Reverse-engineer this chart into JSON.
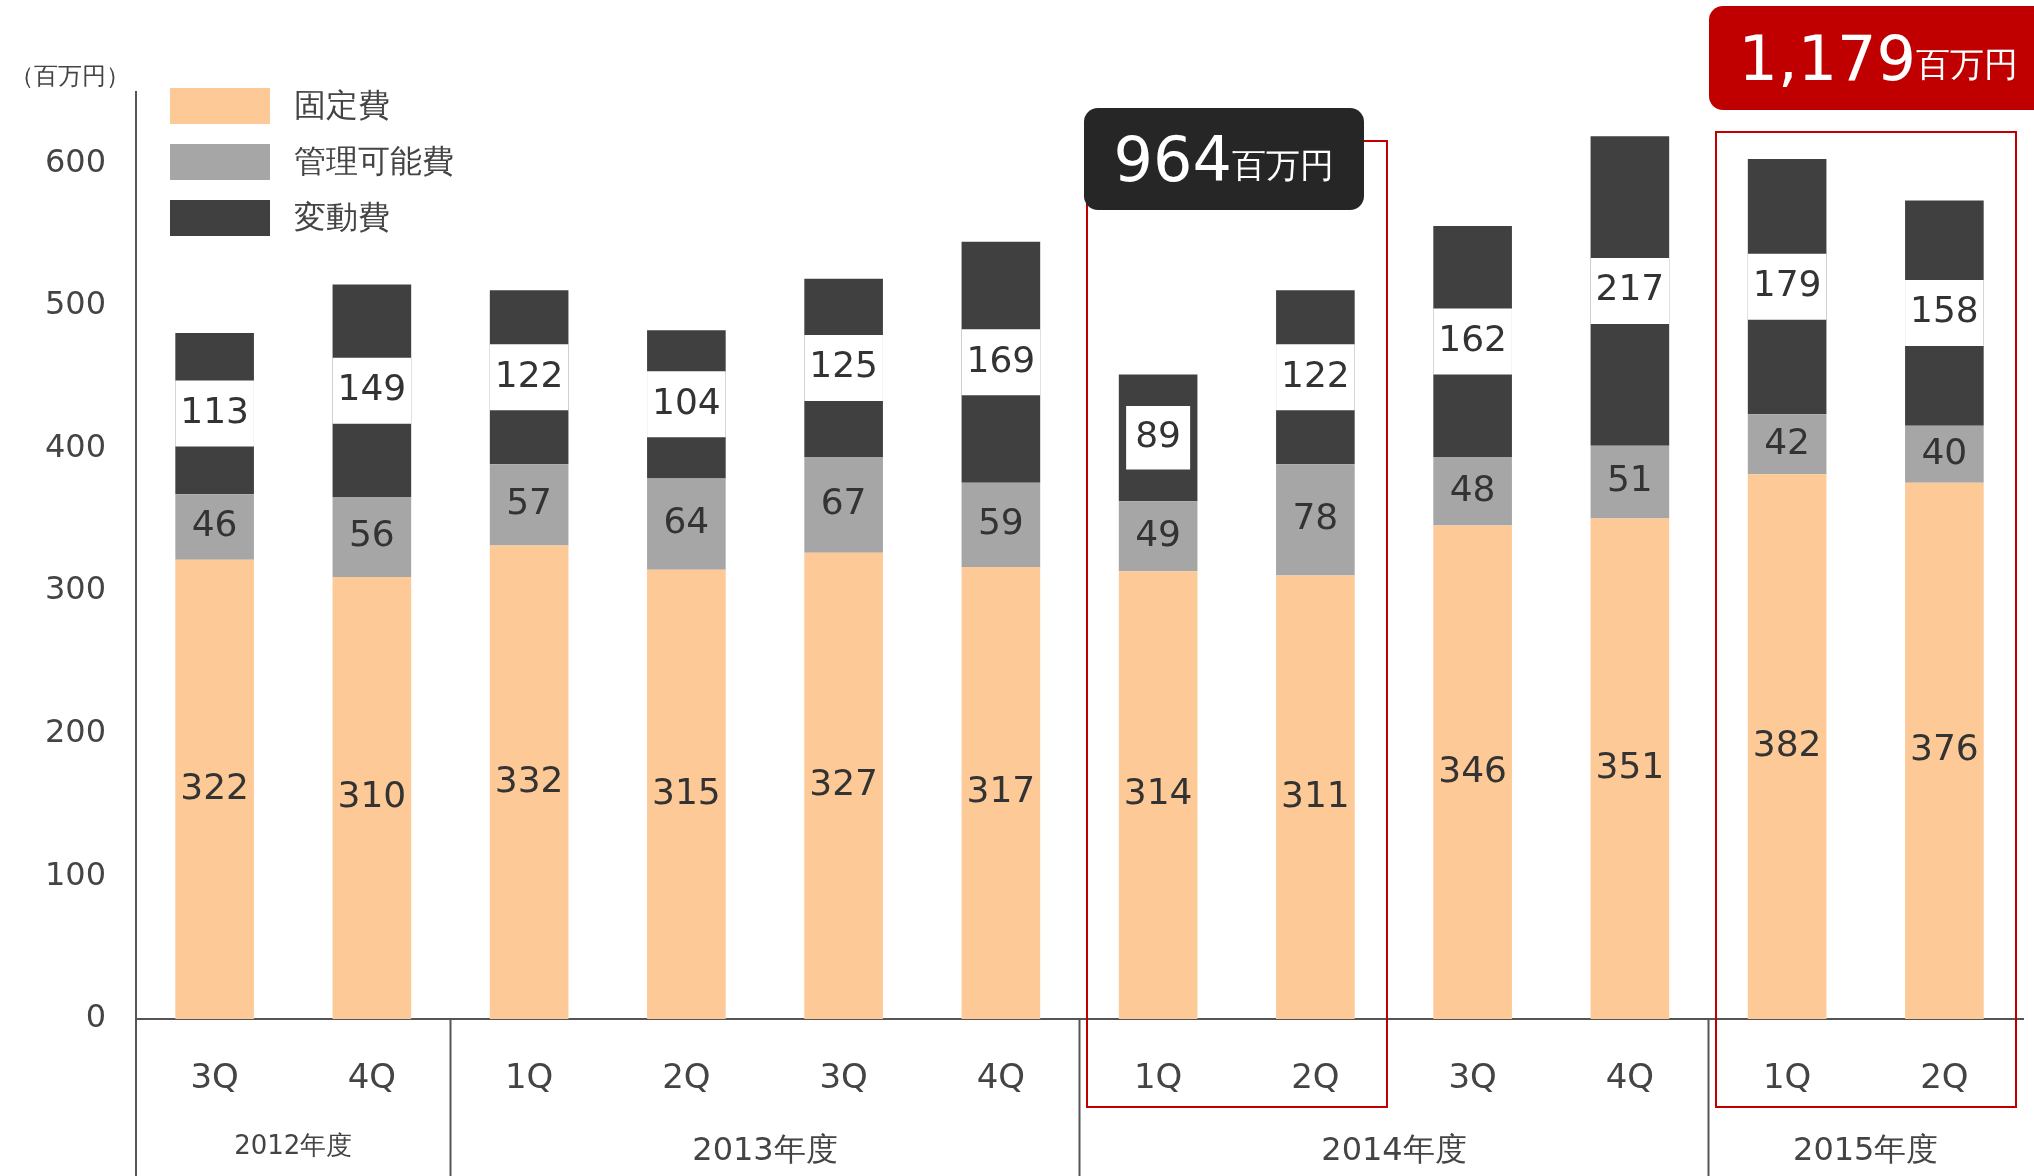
{
  "chart_data": {
    "type": "bar",
    "stacked": true,
    "ylabel": "（百万円）",
    "categories": [
      "3Q",
      "4Q",
      "1Q",
      "2Q",
      "3Q",
      "4Q",
      "1Q",
      "2Q",
      "3Q",
      "4Q",
      "1Q",
      "2Q"
    ],
    "series": [
      {
        "name": "固定費",
        "color": "#fdc996",
        "values": [
          322,
          310,
          332,
          315,
          327,
          317,
          314,
          311,
          346,
          351,
          382,
          376
        ]
      },
      {
        "name": "管理可能費",
        "color": "#a6a6a6",
        "values": [
          46,
          56,
          57,
          64,
          67,
          59,
          49,
          78,
          48,
          51,
          42,
          40
        ]
      },
      {
        "name": "変動費",
        "color": "#404040",
        "values": [
          113,
          149,
          122,
          104,
          125,
          169,
          89,
          122,
          162,
          217,
          179,
          158
        ]
      }
    ],
    "ylim": [
      0,
      650
    ],
    "yticks": [
      0,
      100,
      200,
      300,
      400,
      500,
      600
    ],
    "grid": false,
    "legend": "top left",
    "data_labels": true,
    "annotations": [
      "2012年度",
      "2013年度",
      "2014年度",
      "2015年度",
      "964百万円",
      "1,179百万円"
    ]
  }
}
